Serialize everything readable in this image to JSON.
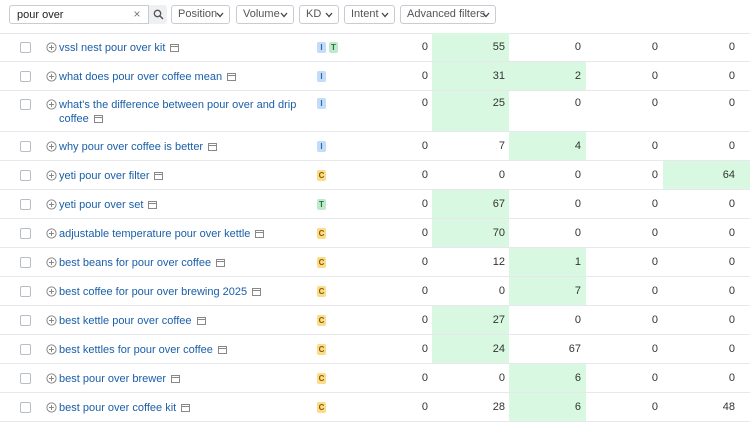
{
  "search": {
    "value": "pour over",
    "clear_icon": "×",
    "button_icon": "search-icon"
  },
  "filters": [
    {
      "label": "Position"
    },
    {
      "label": "Volume"
    },
    {
      "label": "KD"
    },
    {
      "label": "Intent"
    },
    {
      "label": "Advanced filters"
    }
  ],
  "colors": {
    "link": "#1a5fa8",
    "highlight": "#d8f8e1",
    "intent_I": "#c4dcf7",
    "intent_T": "#bfe9cc",
    "intent_C": "#fbdc8a"
  },
  "rows": [
    {
      "keyword": "vssl nest pour over kit",
      "intents": [
        "I",
        "T"
      ],
      "values": [
        "0",
        "55",
        "0",
        "0",
        "0"
      ],
      "highlight": [
        1
      ]
    },
    {
      "keyword": "what does pour over coffee mean",
      "intents": [
        "I"
      ],
      "values": [
        "0",
        "31",
        "2",
        "0",
        "0"
      ],
      "highlight": [
        1,
        2
      ]
    },
    {
      "keyword": "what's the difference between pour over and drip coffee",
      "intents": [
        "I"
      ],
      "values": [
        "0",
        "25",
        "0",
        "0",
        "0"
      ],
      "highlight": [
        1
      ],
      "tall": true
    },
    {
      "keyword": "why pour over coffee is better",
      "intents": [
        "I"
      ],
      "values": [
        "0",
        "7",
        "4",
        "0",
        "0"
      ],
      "highlight": [
        2
      ]
    },
    {
      "keyword": "yeti pour over filter",
      "intents": [
        "C"
      ],
      "values": [
        "0",
        "0",
        "0",
        "0",
        "64"
      ],
      "highlight": [
        4
      ]
    },
    {
      "keyword": "yeti pour over set",
      "intents": [
        "T"
      ],
      "values": [
        "0",
        "67",
        "0",
        "0",
        "0"
      ],
      "highlight": [
        1
      ]
    },
    {
      "keyword": "adjustable temperature pour over kettle",
      "intents": [
        "C"
      ],
      "values": [
        "0",
        "70",
        "0",
        "0",
        "0"
      ],
      "highlight": [
        1
      ]
    },
    {
      "keyword": "best beans for pour over coffee",
      "intents": [
        "C"
      ],
      "values": [
        "0",
        "12",
        "1",
        "0",
        "0"
      ],
      "highlight": [
        2
      ]
    },
    {
      "keyword": "best coffee for pour over brewing 2025",
      "intents": [
        "C"
      ],
      "values": [
        "0",
        "0",
        "7",
        "0",
        "0"
      ],
      "highlight": [
        2
      ]
    },
    {
      "keyword": "best kettle pour over coffee",
      "intents": [
        "C"
      ],
      "values": [
        "0",
        "27",
        "0",
        "0",
        "0"
      ],
      "highlight": [
        1
      ]
    },
    {
      "keyword": "best kettles for pour over coffee",
      "intents": [
        "C"
      ],
      "values": [
        "0",
        "24",
        "67",
        "0",
        "0"
      ],
      "highlight": [
        1
      ]
    },
    {
      "keyword": "best pour over brewer",
      "intents": [
        "C"
      ],
      "values": [
        "0",
        "0",
        "6",
        "0",
        "0"
      ],
      "highlight": [
        2
      ]
    },
    {
      "keyword": "best pour over coffee kit",
      "intents": [
        "C"
      ],
      "values": [
        "0",
        "28",
        "6",
        "0",
        "48"
      ],
      "highlight": [
        2
      ]
    }
  ]
}
